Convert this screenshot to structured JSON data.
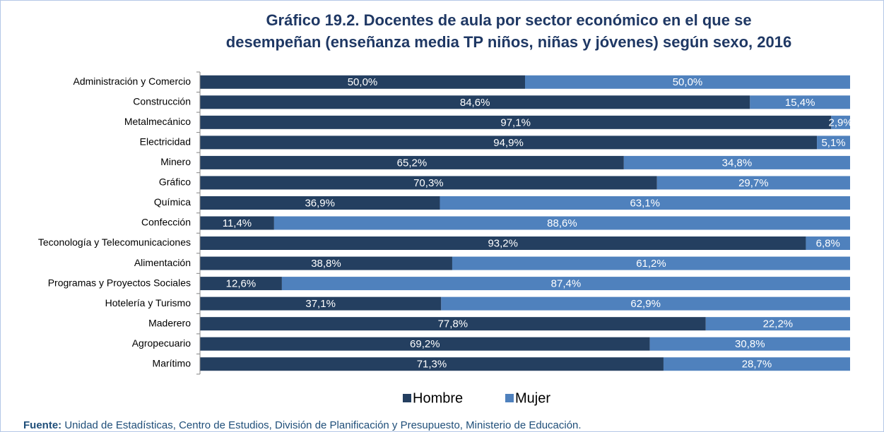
{
  "chart_data": {
    "type": "stacked-bar-horizontal",
    "title": [
      "Gráfico 19.2. Docentes de aula por sector económico en el que se",
      "desempeñan (enseñanza media TP niños, niñas y jóvenes) según sexo, 2016"
    ],
    "categories": [
      "Administración y Comercio",
      "Construcción",
      "Metalmecánico",
      "Electricidad",
      "Minero",
      "Gráfico",
      "Química",
      "Confección",
      "Teconología y Telecomunicaciones",
      "Alimentación",
      "Programas y Proyectos Sociales",
      "Hotelería y Turismo",
      "Maderero",
      "Agropecuario",
      "Marítimo"
    ],
    "series": [
      {
        "name": "Hombre",
        "color": "#243f60",
        "values": [
          50.0,
          84.6,
          97.1,
          94.9,
          65.2,
          70.3,
          36.9,
          11.4,
          93.2,
          38.8,
          12.6,
          37.1,
          77.8,
          69.2,
          71.3
        ],
        "value_labels": [
          "50,0%",
          "84,6%",
          "97,1%",
          "94,9%",
          "65,2%",
          "70,3%",
          "36,9%",
          "11,4%",
          "93,2%",
          "38,8%",
          "12,6%",
          "37,1%",
          "77,8%",
          "69,2%",
          "71,3%"
        ]
      },
      {
        "name": "Mujer",
        "color": "#4f81bd",
        "values": [
          50.0,
          15.4,
          2.9,
          5.1,
          34.8,
          29.7,
          63.1,
          88.6,
          6.8,
          61.2,
          87.4,
          62.9,
          22.2,
          30.8,
          28.7
        ],
        "value_labels": [
          "50,0%",
          "15,4%",
          "2,9%",
          "5,1%",
          "34,8%",
          "29,7%",
          "63,1%",
          "88,6%",
          "6,8%",
          "61,2%",
          "87,4%",
          "62,9%",
          "22,2%",
          "30,8%",
          "28,7%"
        ]
      }
    ],
    "xlim": [
      0,
      100
    ],
    "legend": "bottom",
    "source_label": "Fuente:",
    "source": "Unidad de Estadísticas, Centro de Estudios, División de Planificación y Presupuesto, Ministerio de Educación."
  }
}
